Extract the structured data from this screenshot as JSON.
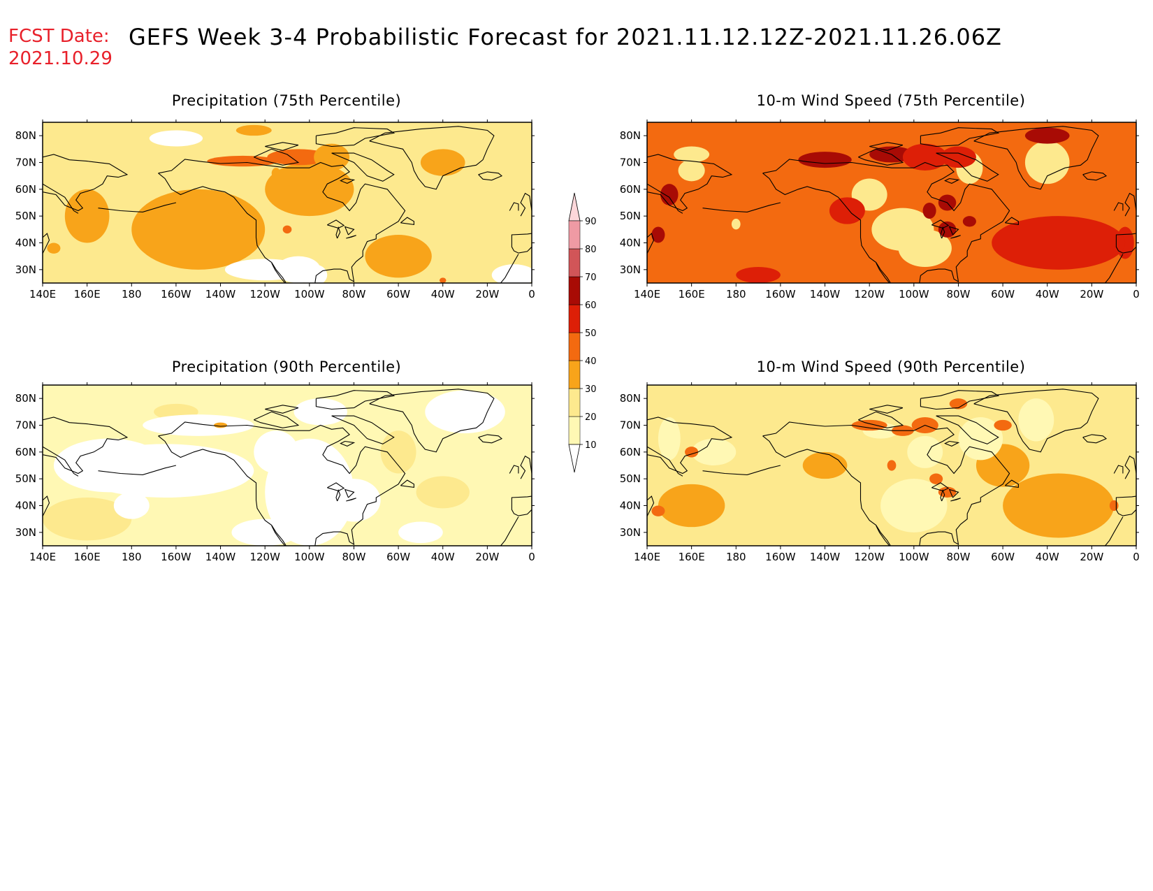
{
  "header": {
    "fcst_label": "FCST Date:",
    "fcst_date": "2021.10.29",
    "title": "GEFS Week 3-4 Probabilistic Forecast for 2021.11.12.12Z-2021.11.26.06Z"
  },
  "axes": {
    "lon_ticks": [
      "140E",
      "160E",
      "180",
      "160W",
      "140W",
      "120W",
      "100W",
      "80W",
      "60W",
      "40W",
      "20W",
      "0"
    ],
    "lat_ticks": [
      "80N",
      "70N",
      "60N",
      "50N",
      "40N",
      "30N"
    ]
  },
  "panels": [
    {
      "id": "precip75",
      "title": "Precipitation (75th Percentile)",
      "base_level": 20
    },
    {
      "id": "wind75",
      "title": "10-m Wind Speed (75th Percentile)",
      "base_level": 40
    },
    {
      "id": "precip90",
      "title": "Precipitation (90th Percentile)",
      "base_level": 10
    },
    {
      "id": "wind90",
      "title": "10-m Wind Speed (90th Percentile)",
      "base_level": 20
    }
  ],
  "colorbar": {
    "levels": [
      "10",
      "20",
      "30",
      "40",
      "50",
      "60",
      "70",
      "80",
      "90"
    ],
    "colors": [
      "#fff8b4",
      "#fde98e",
      "#f8a41a",
      "#f36a10",
      "#dd1f07",
      "#a80b05",
      "#d15558",
      "#ef9aa4",
      "#fdd7da"
    ]
  }
}
